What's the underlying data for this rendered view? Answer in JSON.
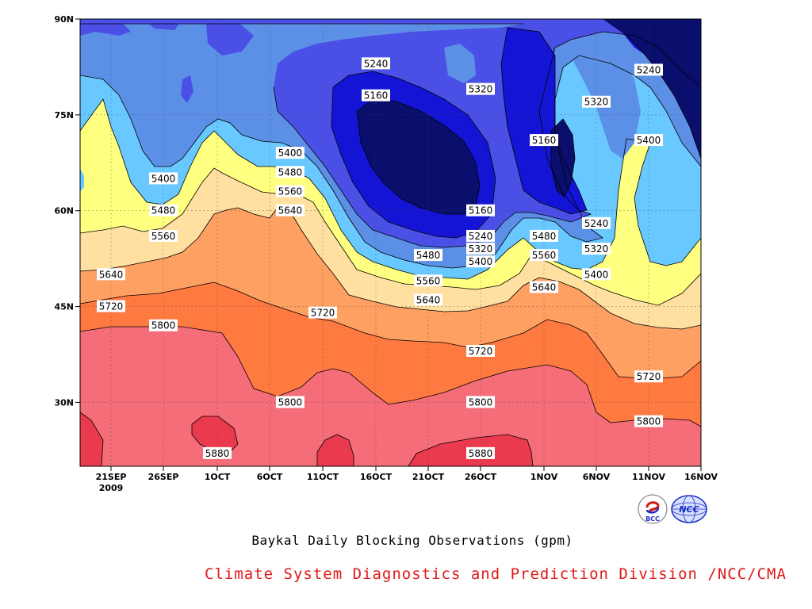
{
  "chart_data": {
    "type": "heatmap",
    "subtitle": "Baykal Daily Blocking Observations (gpm)",
    "credit": "Climate System Diagnostics and Prediction Division /NCC/CMA",
    "x_ticks": [
      "21SEP",
      "26SEP",
      "1OCT",
      "6OCT",
      "11OCT",
      "16OCT",
      "21OCT",
      "26OCT",
      "1NOV",
      "6NOV",
      "11NOV",
      "16NOV"
    ],
    "x_year_label": "2009",
    "y_ticks": [
      "90N",
      "75N",
      "60N",
      "45N",
      "30N"
    ],
    "ylim": [
      20,
      90
    ],
    "grid": true,
    "contour_levels": [
      5160,
      5240,
      5320,
      5400,
      5480,
      5560,
      5640,
      5720,
      5800,
      5880
    ],
    "contour_colors": [
      "#0a0f6e",
      "#1414d6",
      "#4a50e6",
      "#5c8fe6",
      "#69c8ff",
      "#ffff80",
      "#ffe0a0",
      "#ffa063",
      "#ff7a40",
      "#f56d78",
      "#ea3a4e"
    ],
    "contour_labels": [
      {
        "text": "5240",
        "date": "16OCT",
        "lat": 83
      },
      {
        "text": "5320",
        "date": "26OCT",
        "lat": 79
      },
      {
        "text": "5160",
        "date": "16OCT",
        "lat": 78
      },
      {
        "text": "5240",
        "date": "11NOV",
        "lat": 82
      },
      {
        "text": "5320",
        "date": "6NOV",
        "lat": 77
      },
      {
        "text": "5160",
        "date": "1NOV",
        "lat": 71
      },
      {
        "text": "5400",
        "date": "11NOV",
        "lat": 71
      },
      {
        "text": "5400",
        "date": "8OCT",
        "lat": 69
      },
      {
        "text": "5480",
        "date": "8OCT",
        "lat": 66
      },
      {
        "text": "5560",
        "date": "8OCT",
        "lat": 63
      },
      {
        "text": "5400",
        "date": "26SEP",
        "lat": 65
      },
      {
        "text": "5480",
        "date": "26SEP",
        "lat": 60
      },
      {
        "text": "5560",
        "date": "26SEP",
        "lat": 56
      },
      {
        "text": "5640",
        "date": "8OCT",
        "lat": 60
      },
      {
        "text": "5640",
        "date": "21SEP",
        "lat": 50
      },
      {
        "text": "5720",
        "date": "21SEP",
        "lat": 45
      },
      {
        "text": "5800",
        "date": "26SEP",
        "lat": 42
      },
      {
        "text": "5720",
        "date": "11OCT",
        "lat": 44
      },
      {
        "text": "5160",
        "date": "26OCT",
        "lat": 60
      },
      {
        "text": "5240",
        "date": "26OCT",
        "lat": 56
      },
      {
        "text": "5320",
        "date": "26OCT",
        "lat": 54
      },
      {
        "text": "5400",
        "date": "26OCT",
        "lat": 52
      },
      {
        "text": "5480",
        "date": "21OCT",
        "lat": 53
      },
      {
        "text": "5560",
        "date": "21OCT",
        "lat": 49
      },
      {
        "text": "5640",
        "date": "21OCT",
        "lat": 46
      },
      {
        "text": "5720",
        "date": "26OCT",
        "lat": 38
      },
      {
        "text": "5800",
        "date": "26OCT",
        "lat": 30
      },
      {
        "text": "5880",
        "date": "26OCT",
        "lat": 22
      },
      {
        "text": "5800",
        "date": "8OCT",
        "lat": 30
      },
      {
        "text": "5880",
        "date": "1OCT",
        "lat": 22
      },
      {
        "text": "5480",
        "date": "1NOV",
        "lat": 56
      },
      {
        "text": "5560",
        "date": "1NOV",
        "lat": 53
      },
      {
        "text": "5640",
        "date": "1NOV",
        "lat": 48
      },
      {
        "text": "5240",
        "date": "6NOV",
        "lat": 58
      },
      {
        "text": "5320",
        "date": "6NOV",
        "lat": 54
      },
      {
        "text": "5400",
        "date": "6NOV",
        "lat": 50
      },
      {
        "text": "5720",
        "date": "11NOV",
        "lat": 34
      },
      {
        "text": "5800",
        "date": "11NOV",
        "lat": 27
      }
    ]
  },
  "logos": {
    "bcc_text": "BCC",
    "ncc_text": "NCC",
    "bcc_color": "#d01818",
    "ncc_color": "#1a2ec8"
  }
}
